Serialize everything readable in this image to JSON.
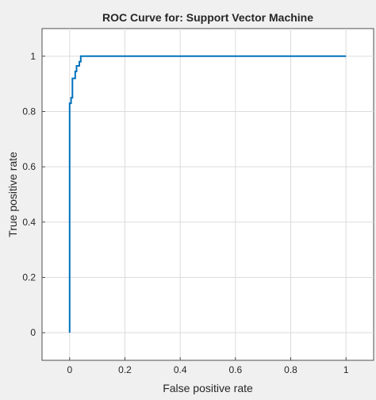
{
  "chart_data": {
    "type": "line",
    "title": "ROC Curve for: Support Vector Machine",
    "xlabel": "False positive rate",
    "ylabel": "True positive rate",
    "xlim": [
      -0.1,
      1.1
    ],
    "ylim": [
      -0.1,
      1.1
    ],
    "xticks": [
      0,
      0.2,
      0.4,
      0.6,
      0.8,
      1
    ],
    "yticks": [
      0,
      0.2,
      0.4,
      0.6,
      0.8,
      1
    ],
    "xtick_labels": [
      "0",
      "0.2",
      "0.4",
      "0.6",
      "0.8",
      "1"
    ],
    "ytick_labels": [
      "0",
      "0.2",
      "0.4",
      "0.6",
      "0.8",
      "1"
    ],
    "grid": true,
    "line_color": "#0072bd",
    "series": [
      {
        "x": [
          0,
          0,
          0.005,
          0.005,
          0.01,
          0.01,
          0.02,
          0.02,
          0.025,
          0.025,
          0.035,
          0.035,
          0.04,
          0.04,
          1
        ],
        "y": [
          0,
          0.83,
          0.83,
          0.85,
          0.85,
          0.92,
          0.92,
          0.945,
          0.945,
          0.965,
          0.965,
          0.98,
          0.98,
          1,
          1
        ]
      }
    ]
  }
}
